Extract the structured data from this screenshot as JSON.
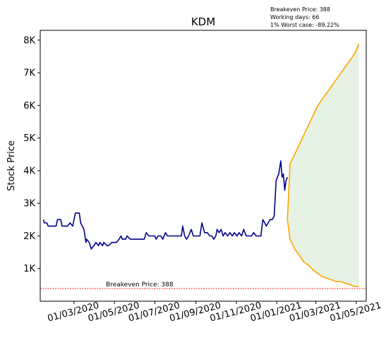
{
  "chart_data": {
    "type": "line",
    "title": "KDM",
    "ylabel": "Stock Price",
    "xlabel": "",
    "ylim": [
      0,
      8300
    ],
    "xlim": [
      "2020-01-10",
      "2021-05-16"
    ],
    "y_ticks": [
      1000,
      2000,
      3000,
      4000,
      5000,
      6000,
      7000,
      8000
    ],
    "y_tick_labels": [
      "1K",
      "2K",
      "3K",
      "4K",
      "5K",
      "6K",
      "7K",
      "8K"
    ],
    "x_ticks": [
      "2020-03-01",
      "2020-05-01",
      "2020-07-01",
      "2020-09-01",
      "2020-11-01",
      "2021-01-01",
      "2021-03-01",
      "2021-05-01"
    ],
    "x_tick_labels": [
      "01/03/2020",
      "01/05/2020",
      "01/07/2020",
      "01/09/2020",
      "01/11/2020",
      "01/01/2021",
      "01/03/2021",
      "01/05/2021"
    ],
    "grid": false,
    "colors": {
      "history": "#00008b",
      "projection": "#ffa500",
      "band_fill": "#e6f2e3",
      "breakeven": "#ff0000"
    },
    "notes": [
      "Breakeven Price: 388",
      "Working days: 66",
      "1% Worst case: -89.22%"
    ],
    "breakeven": {
      "value": 388,
      "label": "Breakeven Price: 388"
    },
    "series": [
      {
        "role": "history",
        "points": [
          [
            "2020-01-15",
            2500
          ],
          [
            "2020-01-16",
            2400
          ],
          [
            "2020-01-20",
            2400
          ],
          [
            "2020-01-22",
            2300
          ],
          [
            "2020-02-03",
            2300
          ],
          [
            "2020-02-05",
            2500
          ],
          [
            "2020-02-10",
            2500
          ],
          [
            "2020-02-12",
            2300
          ],
          [
            "2020-02-20",
            2300
          ],
          [
            "2020-02-24",
            2400
          ],
          [
            "2020-02-28",
            2300
          ],
          [
            "2020-03-03",
            2700
          ],
          [
            "2020-03-09",
            2700
          ],
          [
            "2020-03-11",
            2400
          ],
          [
            "2020-03-16",
            2200
          ],
          [
            "2020-03-19",
            1800
          ],
          [
            "2020-03-20",
            1900
          ],
          [
            "2020-03-24",
            1800
          ],
          [
            "2020-03-27",
            1600
          ],
          [
            "2020-03-31",
            1700
          ],
          [
            "2020-04-03",
            1800
          ],
          [
            "2020-04-07",
            1700
          ],
          [
            "2020-04-09",
            1800
          ],
          [
            "2020-04-13",
            1700
          ],
          [
            "2020-04-15",
            1800
          ],
          [
            "2020-04-20",
            1700
          ],
          [
            "2020-04-22",
            1700
          ],
          [
            "2020-04-27",
            1800
          ],
          [
            "2020-05-04",
            1800
          ],
          [
            "2020-05-08",
            1900
          ],
          [
            "2020-05-11",
            2000
          ],
          [
            "2020-05-13",
            1900
          ],
          [
            "2020-05-18",
            1900
          ],
          [
            "2020-05-20",
            2000
          ],
          [
            "2020-05-25",
            1900
          ],
          [
            "2020-06-01",
            1900
          ],
          [
            "2020-06-15",
            1900
          ],
          [
            "2020-06-18",
            2100
          ],
          [
            "2020-06-22",
            2000
          ],
          [
            "2020-07-01",
            2000
          ],
          [
            "2020-07-03",
            1900
          ],
          [
            "2020-07-06",
            2000
          ],
          [
            "2020-07-10",
            2000
          ],
          [
            "2020-07-13",
            1900
          ],
          [
            "2020-07-17",
            2100
          ],
          [
            "2020-07-20",
            2000
          ],
          [
            "2020-08-10",
            2000
          ],
          [
            "2020-08-12",
            2300
          ],
          [
            "2020-08-15",
            2000
          ],
          [
            "2020-08-18",
            1900
          ],
          [
            "2020-08-21",
            2000
          ],
          [
            "2020-08-25",
            2200
          ],
          [
            "2020-08-28",
            2000
          ],
          [
            "2020-09-02",
            2000
          ],
          [
            "2020-09-07",
            2000
          ],
          [
            "2020-09-10",
            2400
          ],
          [
            "2020-09-14",
            2100
          ],
          [
            "2020-09-18",
            2100
          ],
          [
            "2020-09-22",
            2000
          ],
          [
            "2020-09-25",
            2000
          ],
          [
            "2020-09-28",
            1900
          ],
          [
            "2020-10-01",
            2000
          ],
          [
            "2020-10-03",
            2200
          ],
          [
            "2020-10-06",
            2100
          ],
          [
            "2020-10-09",
            2200
          ],
          [
            "2020-10-12",
            2000
          ],
          [
            "2020-10-15",
            2100
          ],
          [
            "2020-10-19",
            2000
          ],
          [
            "2020-10-22",
            2100
          ],
          [
            "2020-10-26",
            2000
          ],
          [
            "2020-10-29",
            2100
          ],
          [
            "2020-11-02",
            2000
          ],
          [
            "2020-11-05",
            2100
          ],
          [
            "2020-11-09",
            2000
          ],
          [
            "2020-11-12",
            2200
          ],
          [
            "2020-11-16",
            2000
          ],
          [
            "2020-11-20",
            2000
          ],
          [
            "2020-11-24",
            2000
          ],
          [
            "2020-11-27",
            2100
          ],
          [
            "2020-12-01",
            2000
          ],
          [
            "2020-12-04",
            2000
          ],
          [
            "2020-12-08",
            2000
          ],
          [
            "2020-12-11",
            2500
          ],
          [
            "2020-12-14",
            2400
          ],
          [
            "2020-12-16",
            2300
          ],
          [
            "2020-12-19",
            2400
          ],
          [
            "2020-12-22",
            2500
          ],
          [
            "2020-12-25",
            2500
          ],
          [
            "2020-12-28",
            2600
          ],
          [
            "2020-12-31",
            3700
          ],
          [
            "2021-01-04",
            3900
          ],
          [
            "2021-01-07",
            4300
          ],
          [
            "2021-01-09",
            3800
          ],
          [
            "2021-01-11",
            3900
          ],
          [
            "2021-01-13",
            3400
          ],
          [
            "2021-01-15",
            3700
          ],
          [
            "2021-01-17",
            3800
          ]
        ]
      },
      {
        "role": "projection-upper",
        "points": [
          [
            "2021-01-17",
            2500
          ],
          [
            "2021-01-21",
            4200
          ],
          [
            "2021-01-28",
            4500
          ],
          [
            "2021-02-04",
            4800
          ],
          [
            "2021-02-11",
            5100
          ],
          [
            "2021-02-18",
            5400
          ],
          [
            "2021-02-25",
            5700
          ],
          [
            "2021-03-04",
            6000
          ],
          [
            "2021-03-11",
            6200
          ],
          [
            "2021-03-18",
            6400
          ],
          [
            "2021-03-25",
            6600
          ],
          [
            "2021-04-01",
            6800
          ],
          [
            "2021-04-08",
            7000
          ],
          [
            "2021-04-15",
            7200
          ],
          [
            "2021-04-22",
            7400
          ],
          [
            "2021-04-29",
            7600
          ],
          [
            "2021-05-03",
            7800
          ],
          [
            "2021-05-05",
            7900
          ]
        ]
      },
      {
        "role": "projection-lower",
        "points": [
          [
            "2021-01-17",
            2500
          ],
          [
            "2021-01-21",
            1900
          ],
          [
            "2021-01-28",
            1600
          ],
          [
            "2021-02-04",
            1400
          ],
          [
            "2021-02-11",
            1200
          ],
          [
            "2021-02-18",
            1100
          ],
          [
            "2021-02-25",
            950
          ],
          [
            "2021-03-04",
            850
          ],
          [
            "2021-03-11",
            750
          ],
          [
            "2021-03-18",
            700
          ],
          [
            "2021-03-25",
            650
          ],
          [
            "2021-04-01",
            600
          ],
          [
            "2021-04-08",
            600
          ],
          [
            "2021-04-15",
            550
          ],
          [
            "2021-04-22",
            500
          ],
          [
            "2021-04-29",
            450
          ],
          [
            "2021-05-03",
            450
          ],
          [
            "2021-05-05",
            450
          ]
        ]
      }
    ]
  }
}
